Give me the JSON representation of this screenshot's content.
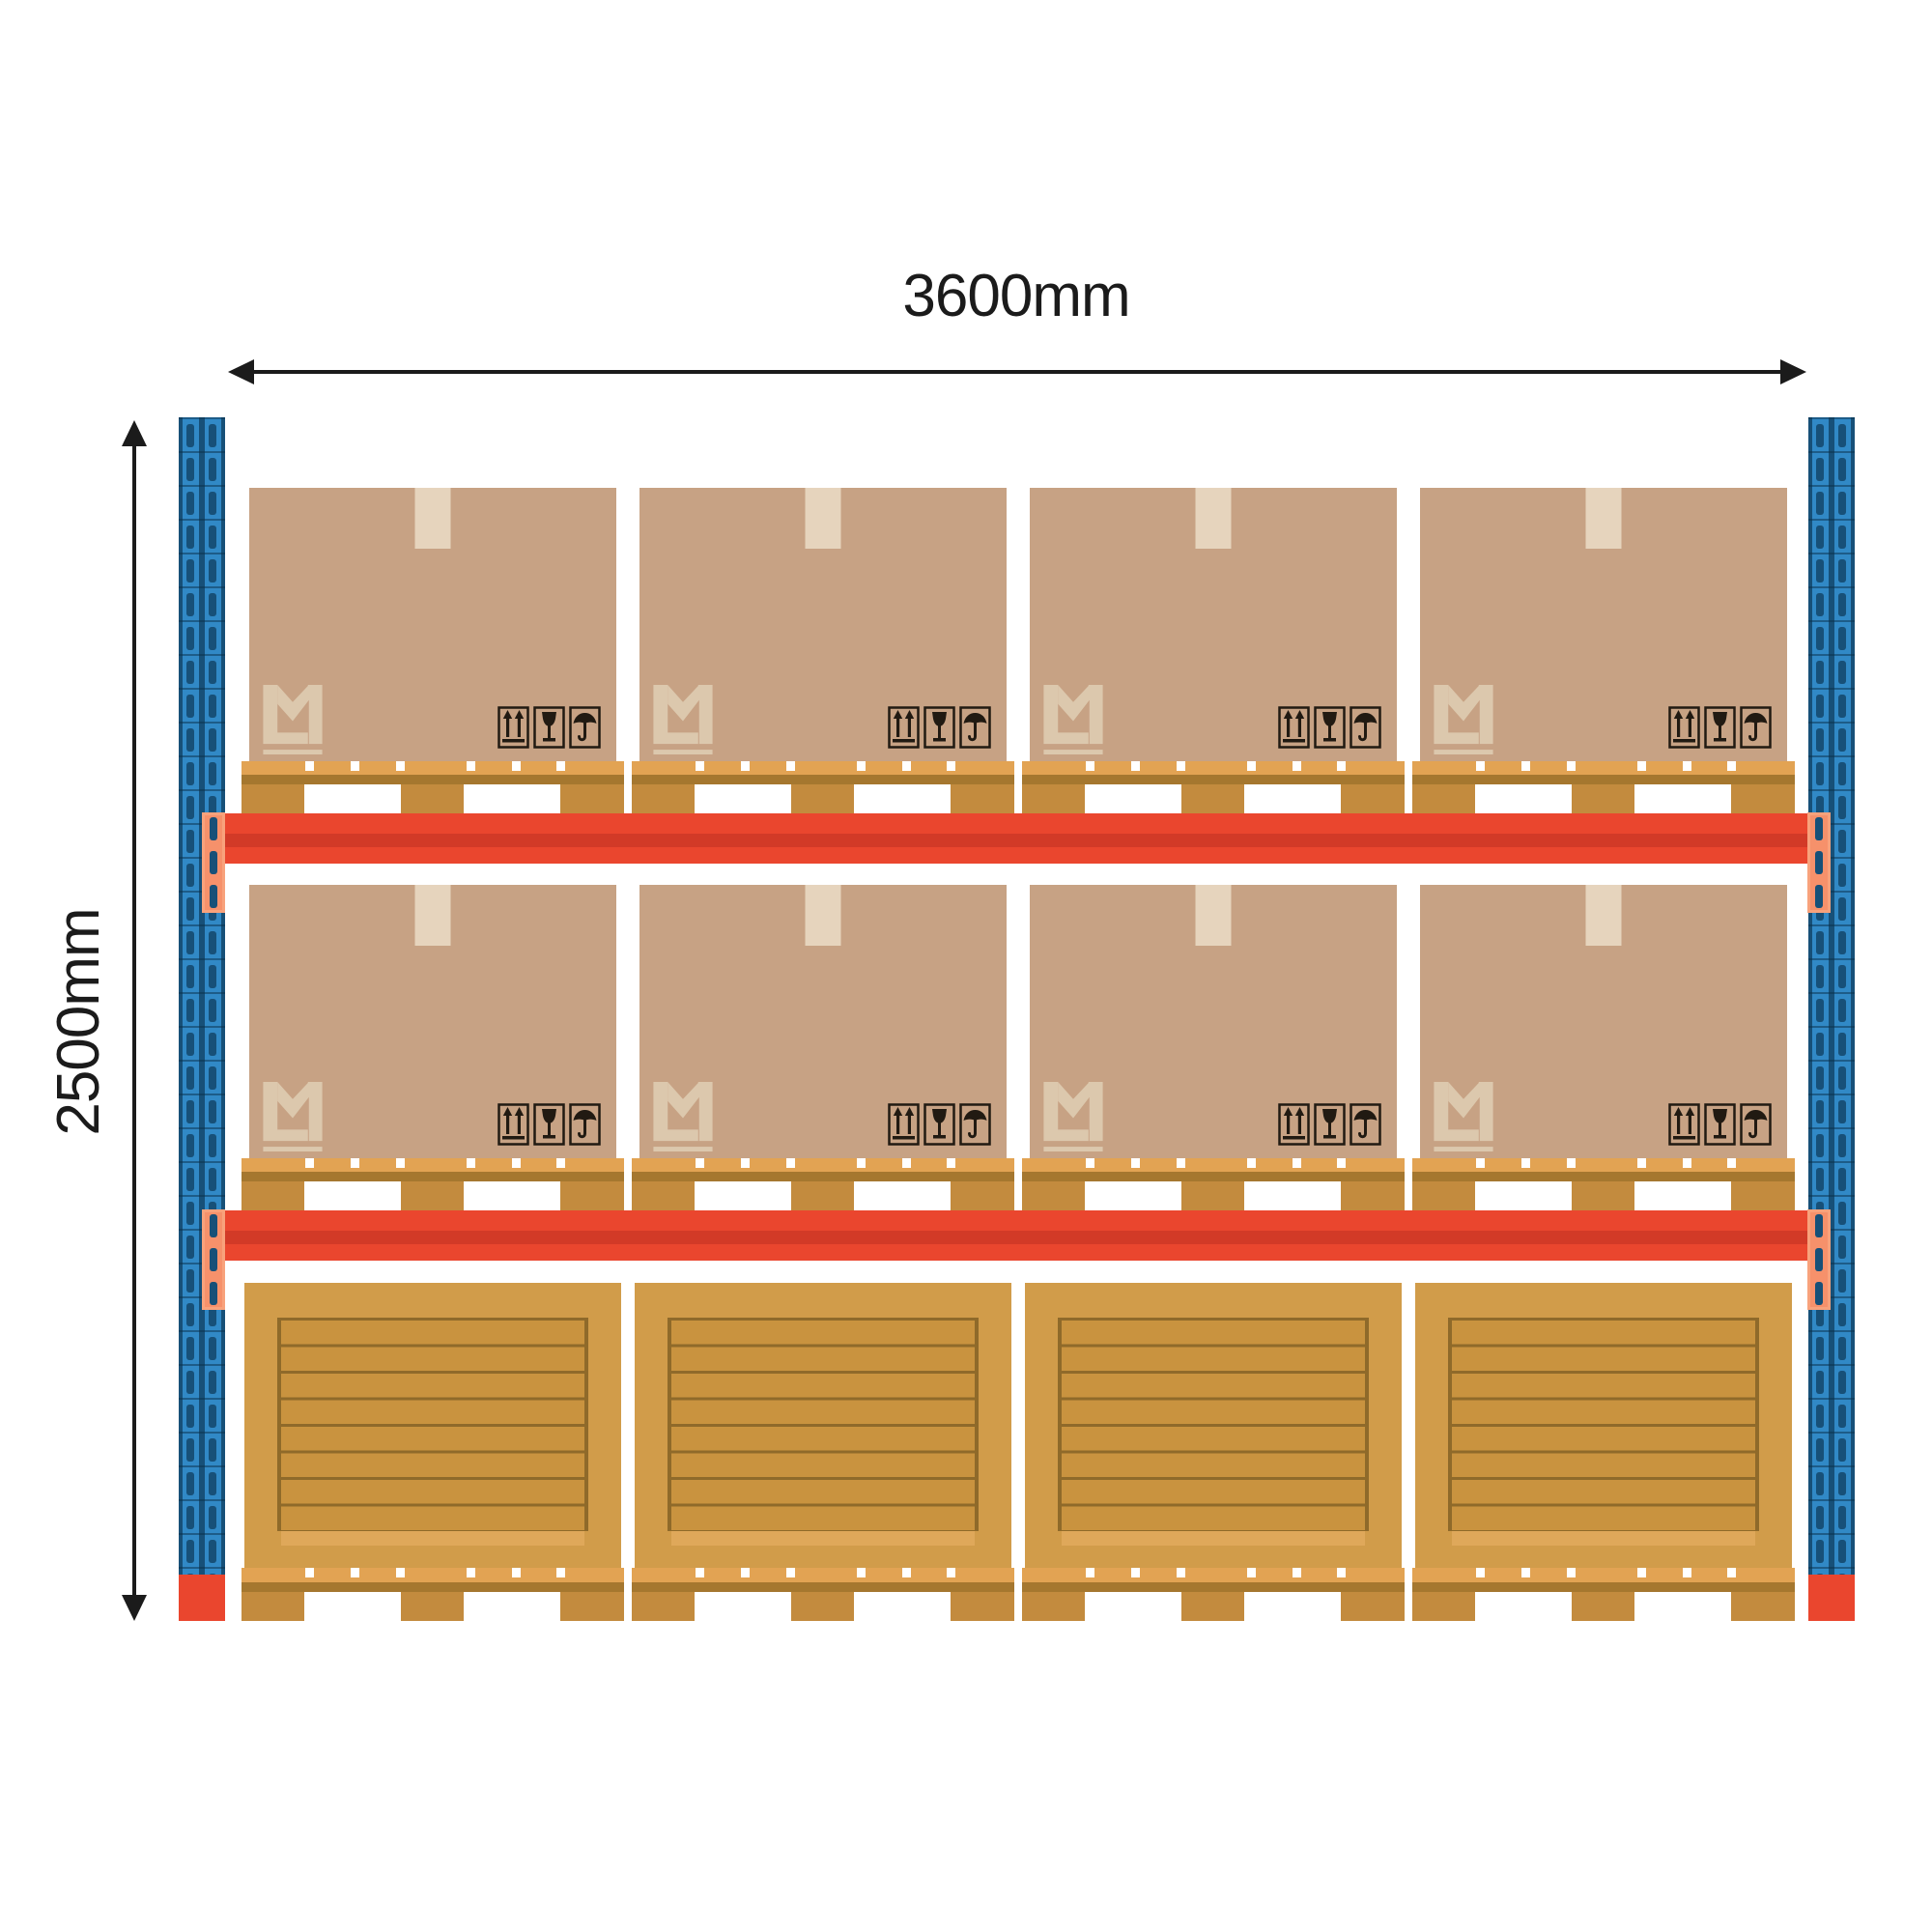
{
  "dimensions": {
    "width_label": "3600mm",
    "height_label": "2500mm"
  },
  "rack": {
    "logo_text": "LM",
    "pictograms": [
      "this-way-up-icon",
      "fragile-icon",
      "keep-dry-icon"
    ],
    "levels": [
      {
        "name": "top-shelf",
        "load": "cardboard-box",
        "count": 4
      },
      {
        "name": "middle-shelf",
        "load": "cardboard-box",
        "count": 4
      },
      {
        "name": "floor-level",
        "load": "wooden-crate",
        "count": 4
      }
    ],
    "beam_count": 2,
    "upright_count": 2
  },
  "colors": {
    "beam_red": "#ea462e",
    "beam_shadow": "#d23a27",
    "bracket_salmon": "#f6916b",
    "upright_blue": "#3189c6",
    "upright_navy": "#175078",
    "box_cardboard": "#c7a284",
    "tape": "#e6d4bd",
    "logo_beige": "#dcc8ad",
    "pallet_deck": "#e2a353",
    "pallet_shadow": "#a5772f",
    "pallet_block": "#c38b3e",
    "crate_frame": "#d19c4a",
    "crate_panel": "#c9933f",
    "crate_line": "#8f6a2a",
    "crate_bottom": "#dfa85a",
    "dimension_ink": "#1b1b1b",
    "pictogram_ink": "#211a12"
  }
}
